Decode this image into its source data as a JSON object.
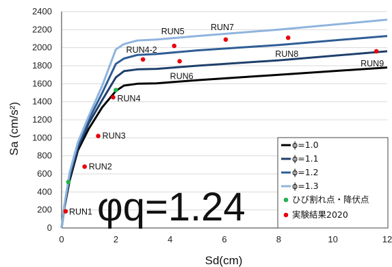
{
  "chart_data": {
    "type": "line",
    "xlabel": "Sd(cm)",
    "ylabel": "Sa (cm/s²)",
    "xlim": [
      0,
      12
    ],
    "ylim": [
      0,
      2400
    ],
    "xticks": [
      0,
      2,
      4,
      6,
      8,
      10,
      12
    ],
    "yticks": [
      0,
      200,
      400,
      600,
      800,
      1000,
      1200,
      1400,
      1600,
      1800,
      2000,
      2200,
      2400
    ],
    "grid": "horizontal",
    "legend_position": "bottom-right",
    "annotation": "φq=1.24",
    "series": [
      {
        "name": "ϕ=1.0",
        "color": "#000000",
        "x": [
          0,
          0.1,
          0.3,
          0.6,
          1.0,
          1.5,
          2.0,
          2.3,
          2.8,
          3.5,
          5,
          8,
          12
        ],
        "y": [
          0,
          220,
          530,
          860,
          1100,
          1340,
          1520,
          1580,
          1600,
          1605,
          1640,
          1700,
          1780
        ]
      },
      {
        "name": "ϕ=1.1",
        "color": "#1f3f6b",
        "x": [
          0,
          0.1,
          0.3,
          0.6,
          1.0,
          1.5,
          2.0,
          2.3,
          2.8,
          3.5,
          5,
          8,
          12
        ],
        "y": [
          0,
          230,
          560,
          890,
          1160,
          1420,
          1670,
          1740,
          1760,
          1765,
          1800,
          1860,
          1960
        ]
      },
      {
        "name": "ϕ=1.2",
        "color": "#2e5d95",
        "x": [
          0,
          0.1,
          0.3,
          0.6,
          1.0,
          1.5,
          2.0,
          2.3,
          2.8,
          3.5,
          5,
          8,
          12
        ],
        "y": [
          0,
          240,
          590,
          920,
          1200,
          1500,
          1820,
          1880,
          1920,
          1930,
          1970,
          2030,
          2130
        ]
      },
      {
        "name": "ϕ=1.3",
        "color": "#8fb4de",
        "x": [
          0,
          0.1,
          0.3,
          0.6,
          1.0,
          1.5,
          2.0,
          2.3,
          2.8,
          3.5,
          5,
          8,
          12
        ],
        "y": [
          0,
          250,
          620,
          950,
          1240,
          1580,
          1980,
          2040,
          2080,
          2090,
          2130,
          2200,
          2310
        ]
      }
    ],
    "points": [
      {
        "name": "ひび割れ点・降伏点",
        "color": "#22b14c",
        "x": [
          0.25,
          2.0
        ],
        "y": [
          510,
          1530
        ]
      },
      {
        "name": "実験結果2020",
        "color": "#e8000b",
        "x": [
          0.15,
          0.85,
          1.35,
          1.9,
          3.0,
          4.15,
          4.35,
          6.05,
          8.35,
          11.6
        ],
        "y": [
          185,
          680,
          1020,
          1450,
          1870,
          2020,
          1850,
          2090,
          2110,
          1960
        ]
      }
    ],
    "run_labels": [
      {
        "text": "RUN1",
        "x": 0.15,
        "y": 185
      },
      {
        "text": "RUN2",
        "x": 0.85,
        "y": 680
      },
      {
        "text": "RUN3",
        "x": 1.35,
        "y": 1020
      },
      {
        "text": "RUN4",
        "x": 1.9,
        "y": 1450
      },
      {
        "text": "RUN4-2",
        "x": 3.0,
        "y": 1870
      },
      {
        "text": "RUN5",
        "x": 4.15,
        "y": 2020
      },
      {
        "text": "RUN6",
        "x": 4.35,
        "y": 1850
      },
      {
        "text": "RUN7",
        "x": 6.05,
        "y": 2090
      },
      {
        "text": "RUN8",
        "x": 8.35,
        "y": 2110
      },
      {
        "text": "RUN9",
        "x": 11.6,
        "y": 1960
      }
    ]
  }
}
